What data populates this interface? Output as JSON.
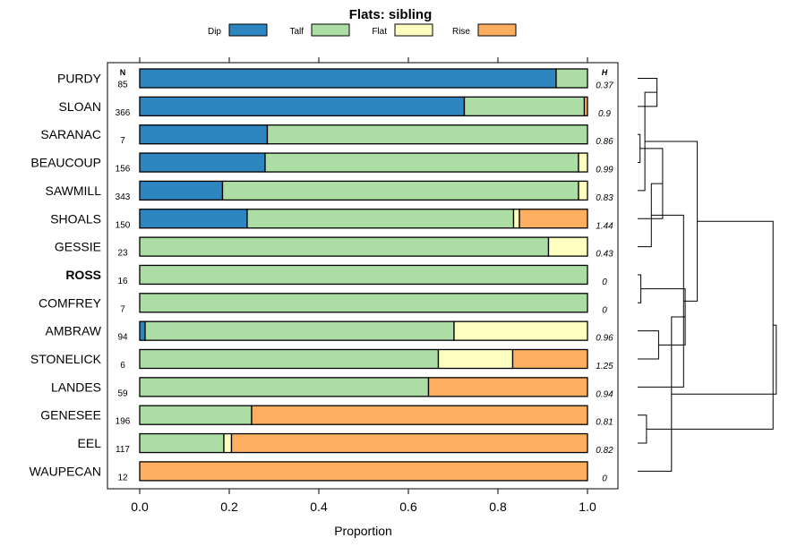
{
  "chart_data": {
    "type": "bar",
    "orientation": "horizontal",
    "stacked": true,
    "title": "Flats: sibling",
    "xlabel": "Proportion",
    "ylabel": "",
    "xlim": [
      0,
      1
    ],
    "x_ticks": [
      "0.0",
      "0.2",
      "0.4",
      "0.6",
      "0.8",
      "1.0"
    ],
    "legend_position": "top",
    "legend": [
      {
        "name": "Dip",
        "color": "#2e86c1"
      },
      {
        "name": "Talf",
        "color": "#abdda4"
      },
      {
        "name": "Flat",
        "color": "#ffffbf"
      },
      {
        "name": "Rise",
        "color": "#fdae61"
      }
    ],
    "n_header": "N",
    "h_header": "H",
    "categories": [
      "PURDY",
      "SLOAN",
      "SARANAC",
      "BEAUCOUP",
      "SAWMILL",
      "SHOALS",
      "GESSIE",
      "ROSS",
      "COMFREY",
      "AMBRAW",
      "STONELICK",
      "LANDES",
      "GENESEE",
      "EEL",
      "WAUPECAN"
    ],
    "highlight": "ROSS",
    "series": [
      {
        "name": "Dip",
        "values": [
          0.93,
          0.725,
          0.285,
          0.28,
          0.185,
          0.24,
          0,
          0,
          0,
          0.012,
          0,
          0,
          0,
          0,
          0
        ]
      },
      {
        "name": "Talf",
        "values": [
          0.07,
          0.268,
          0.715,
          0.7,
          0.795,
          0.595,
          0.913,
          1.0,
          1.0,
          0.69,
          0.667,
          0.645,
          0.25,
          0.188,
          0
        ]
      },
      {
        "name": "Flat",
        "values": [
          0,
          0,
          0,
          0.02,
          0.02,
          0.013,
          0.087,
          0,
          0,
          0.298,
          0.166,
          0,
          0,
          0.017,
          0
        ]
      },
      {
        "name": "Rise",
        "values": [
          0,
          0.007,
          0,
          0,
          0,
          0.152,
          0,
          0,
          0,
          0,
          0.167,
          0.355,
          0.75,
          0.795,
          1.0
        ]
      }
    ],
    "n": [
      "85",
      "366",
      "7",
      "156",
      "343",
      "150",
      "23",
      "16",
      "7",
      "94",
      "6",
      "59",
      "196",
      "117",
      "12"
    ],
    "h": [
      "0.37",
      "0.9",
      "0.86",
      "0.99",
      "0.83",
      "1.44",
      "0.43",
      "0",
      "0",
      "0.96",
      "1.25",
      "0.94",
      "0.81",
      "0.82",
      "0"
    ],
    "dendrogram": {
      "merges": [
        [
          0,
          1,
          0.12
        ],
        [
          2,
          3,
          0.015
        ],
        [
          15,
          4,
          0.045
        ],
        [
          16,
          5,
          0.155
        ],
        [
          7,
          8,
          0.02
        ],
        [
          6,
          18,
          0.085
        ],
        [
          9,
          10,
          0.13
        ],
        [
          20,
          11,
          0.285
        ],
        [
          19,
          21,
          0.295
        ],
        [
          17,
          22,
          0.37
        ],
        [
          12,
          13,
          0.055
        ],
        [
          23,
          14,
          0.21
        ],
        [
          24,
          25,
          0.84
        ],
        [
          26,
          27,
          0.86
        ]
      ]
    }
  }
}
